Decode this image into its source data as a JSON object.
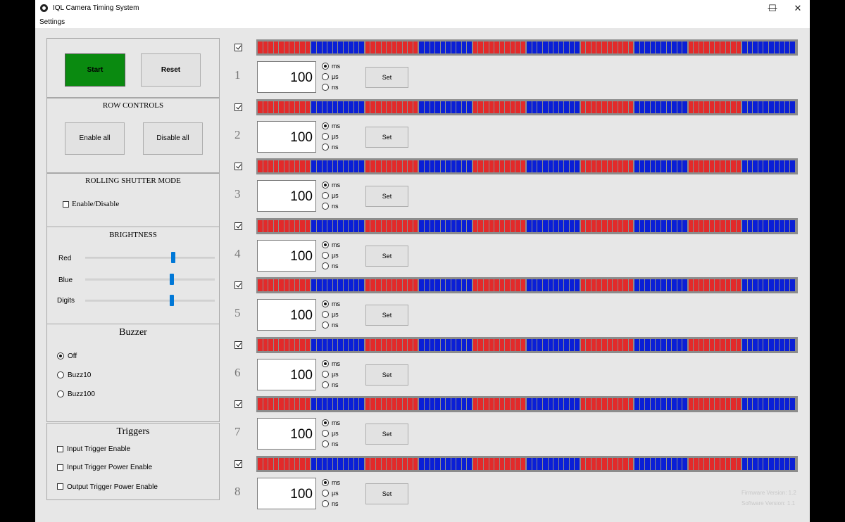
{
  "window": {
    "title": "IQL Camera Timing System",
    "minimize": "—",
    "maximize": "☐",
    "close": "✕"
  },
  "menu": {
    "settings": "Settings"
  },
  "controls": {
    "start": "Start",
    "reset": "Reset"
  },
  "row_controls": {
    "title": "ROW CONTROLS",
    "enable_all": "Enable all",
    "disable_all": "Disable all"
  },
  "rolling_shutter": {
    "title": "ROLLING SHUTTER MODE",
    "toggle": "Enable/Disable",
    "checked": false
  },
  "brightness": {
    "title": "BRIGHTNESS",
    "sliders": [
      {
        "label": "Red",
        "value": 0.68
      },
      {
        "label": "Blue",
        "value": 0.67
      },
      {
        "label": "Digits",
        "value": 0.67
      }
    ]
  },
  "buzzer": {
    "title": "Buzzer",
    "options": [
      "Off",
      "Buzz10",
      "Buzz100"
    ],
    "selected": 0
  },
  "triggers": {
    "title": "Triggers",
    "options": [
      {
        "label": "Input Trigger Enable",
        "checked": false
      },
      {
        "label": "Input Trigger Power Enable",
        "checked": false
      },
      {
        "label": "Output Trigger Power Enable",
        "checked": false
      }
    ]
  },
  "rows": [
    {
      "number": "1",
      "value": "100",
      "enabled": true,
      "unit": "ms"
    },
    {
      "number": "2",
      "value": "100",
      "enabled": true,
      "unit": "ms"
    },
    {
      "number": "3",
      "value": "100",
      "enabled": true,
      "unit": "ms"
    },
    {
      "number": "4",
      "value": "100",
      "enabled": true,
      "unit": "ms"
    },
    {
      "number": "5",
      "value": "100",
      "enabled": true,
      "unit": "ms"
    },
    {
      "number": "6",
      "value": "100",
      "enabled": true,
      "unit": "ms"
    },
    {
      "number": "7",
      "value": "100",
      "enabled": true,
      "unit": "ms"
    },
    {
      "number": "8",
      "value": "100",
      "enabled": true,
      "unit": "ms"
    }
  ],
  "units": [
    "ms",
    "µs",
    "ns"
  ],
  "set_label": "Set",
  "led": {
    "segments": 100,
    "group_size": 10,
    "pattern": [
      "red",
      "blue"
    ],
    "colors": {
      "red": "#e22a2a",
      "blue": "#0a1fd6"
    }
  },
  "colors": {
    "start_green": "#0a8a10"
  },
  "versions": {
    "firmware": "Firmware Version: 1.2",
    "software": "Software Version: 1.1"
  }
}
